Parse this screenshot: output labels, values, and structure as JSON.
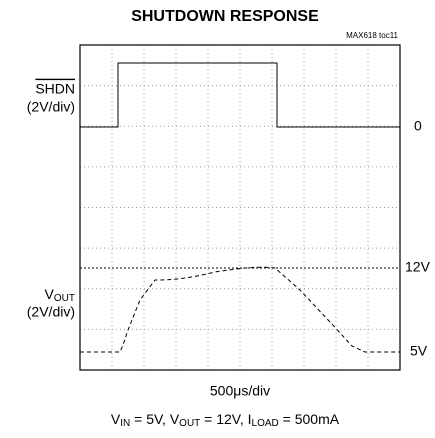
{
  "title": "SHUTDOWN RESPONSE",
  "figure_id": "MAX618 toc11",
  "left_labels": {
    "shdn": "SHDN",
    "shdn_scale": "(2V/div)",
    "vout_main": "V",
    "vout_sub": "OUT",
    "vout_scale": "(2V/div)"
  },
  "right_labels": {
    "zero": "0",
    "high": "12V",
    "low": "5V"
  },
  "x_label": "500μs/div",
  "conditions": [
    "V",
    "IN",
    " = 5V, V",
    "OUT",
    " = 12V, I",
    "LOAD",
    " = 500mA"
  ]
}
